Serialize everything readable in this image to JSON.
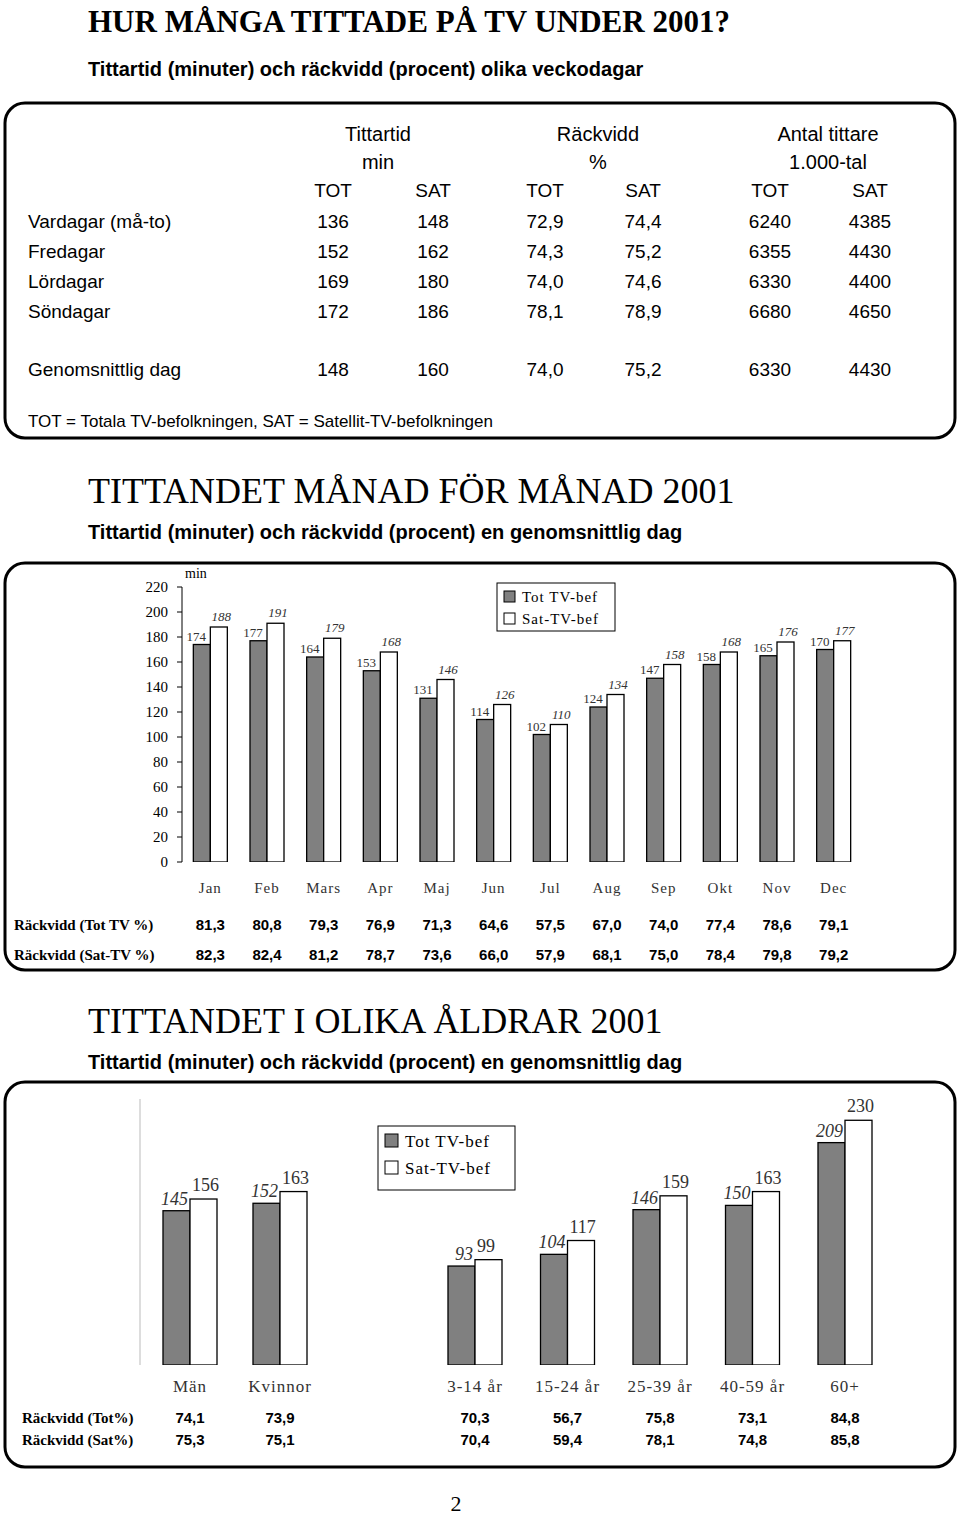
{
  "header": {
    "title": "HUR MÅNGA TITTADE PÅ TV UNDER 2001?",
    "subtitle": "Tittartid (minuter) och räckvidd (procent) olika veckodagar"
  },
  "table": {
    "group_headers": [
      [
        "Tittartid",
        "min"
      ],
      [
        "Räckvidd",
        "%"
      ],
      [
        "Antal tittare",
        "1.000-tal"
      ]
    ],
    "columns": [
      "TOT",
      "SAT",
      "TOT",
      "SAT",
      "TOT",
      "SAT"
    ],
    "rows": [
      {
        "label": "Vardagar (må-to)",
        "cells": [
          "136",
          "148",
          "72,9",
          "74,4",
          "6240",
          "4385"
        ]
      },
      {
        "label": "Fredagar",
        "cells": [
          "152",
          "162",
          "74,3",
          "75,2",
          "6355",
          "4430"
        ]
      },
      {
        "label": "Lördagar",
        "cells": [
          "169",
          "180",
          "74,0",
          "74,6",
          "6330",
          "4400"
        ]
      },
      {
        "label": "Söndagar",
        "cells": [
          "172",
          "186",
          "78,1",
          "78,9",
          "6680",
          "4650"
        ]
      },
      {
        "label": "Genomsnittlig dag",
        "cells": [
          "148",
          "160",
          "74,0",
          "75,2",
          "6330",
          "4430"
        ]
      }
    ],
    "footnote": "TOT = Totala TV-befolkningen, SAT = Satellit-TV-befolkningen"
  },
  "chart_data": [
    {
      "type": "bar",
      "title": "TITTANDET MÅNAD FÖR MÅNAD 2001",
      "subtitle": "Tittartid (minuter) och räckvidd (procent) en genomsnittlig dag",
      "y_label": "min",
      "categories": [
        "Jan",
        "Feb",
        "Mars",
        "Apr",
        "Maj",
        "Jun",
        "Jul",
        "Aug",
        "Sep",
        "Okt",
        "Nov",
        "Dec"
      ],
      "series": [
        {
          "name": "Tot TV-bef",
          "color": "#808080",
          "values": [
            174,
            177,
            164,
            153,
            131,
            114,
            102,
            124,
            147,
            158,
            165,
            170
          ]
        },
        {
          "name": "Sat-TV-bef",
          "color": "#ffffff",
          "values": [
            188,
            191,
            179,
            168,
            146,
            126,
            110,
            134,
            158,
            168,
            176,
            177
          ]
        }
      ],
      "ylim": [
        0,
        220
      ],
      "yticks": [
        0,
        20,
        40,
        60,
        80,
        100,
        120,
        140,
        160,
        180,
        200,
        220
      ],
      "grid": false,
      "legend": "top",
      "data_labels": true
    },
    {
      "type": "bar",
      "title": "TITTANDET I OLIKA ÅLDRAR 2001",
      "subtitle": "Tittartid (minuter) och räckvidd (procent) en genomsnittlig dag",
      "categories": [
        "Män",
        "Kvinnor",
        "3-14 år",
        "15-24 år",
        "25-39 år",
        "40-59 år",
        "60+"
      ],
      "series": [
        {
          "name": "Tot TV-bef",
          "color": "#808080",
          "values": [
            145,
            152,
            93,
            104,
            146,
            150,
            209
          ]
        },
        {
          "name": "Sat-TV-bef",
          "color": "#ffffff",
          "values": [
            156,
            163,
            99,
            117,
            159,
            163,
            230
          ]
        }
      ],
      "ylim": [
        0,
        250
      ],
      "grid": false,
      "legend": "top",
      "data_labels": true,
      "tick_labels": "x"
    }
  ],
  "reach_by_month": {
    "rows": [
      {
        "label": "Räckvidd (Tot TV %)",
        "values": [
          "81,3",
          "80,8",
          "79,3",
          "76,9",
          "71,3",
          "64,6",
          "57,5",
          "67,0",
          "74,0",
          "77,4",
          "78,6",
          "79,1"
        ]
      },
      {
        "label": "Räckvidd (Sat-TV %)",
        "values": [
          "82,3",
          "82,4",
          "81,2",
          "78,7",
          "73,6",
          "66,0",
          "57,9",
          "68,1",
          "75,0",
          "78,4",
          "79,8",
          "79,2"
        ]
      }
    ]
  },
  "reach_by_age": {
    "rows": [
      {
        "label": "Räckvidd (Tot%)",
        "values": [
          "74,1",
          "73,9",
          "70,3",
          "56,7",
          "75,8",
          "73,1",
          "84,8"
        ]
      },
      {
        "label": "Räckvidd (Sat%)",
        "values": [
          "75,3",
          "75,1",
          "70,4",
          "59,4",
          "78,1",
          "74,8",
          "85,8"
        ]
      }
    ]
  },
  "page_number": "2"
}
